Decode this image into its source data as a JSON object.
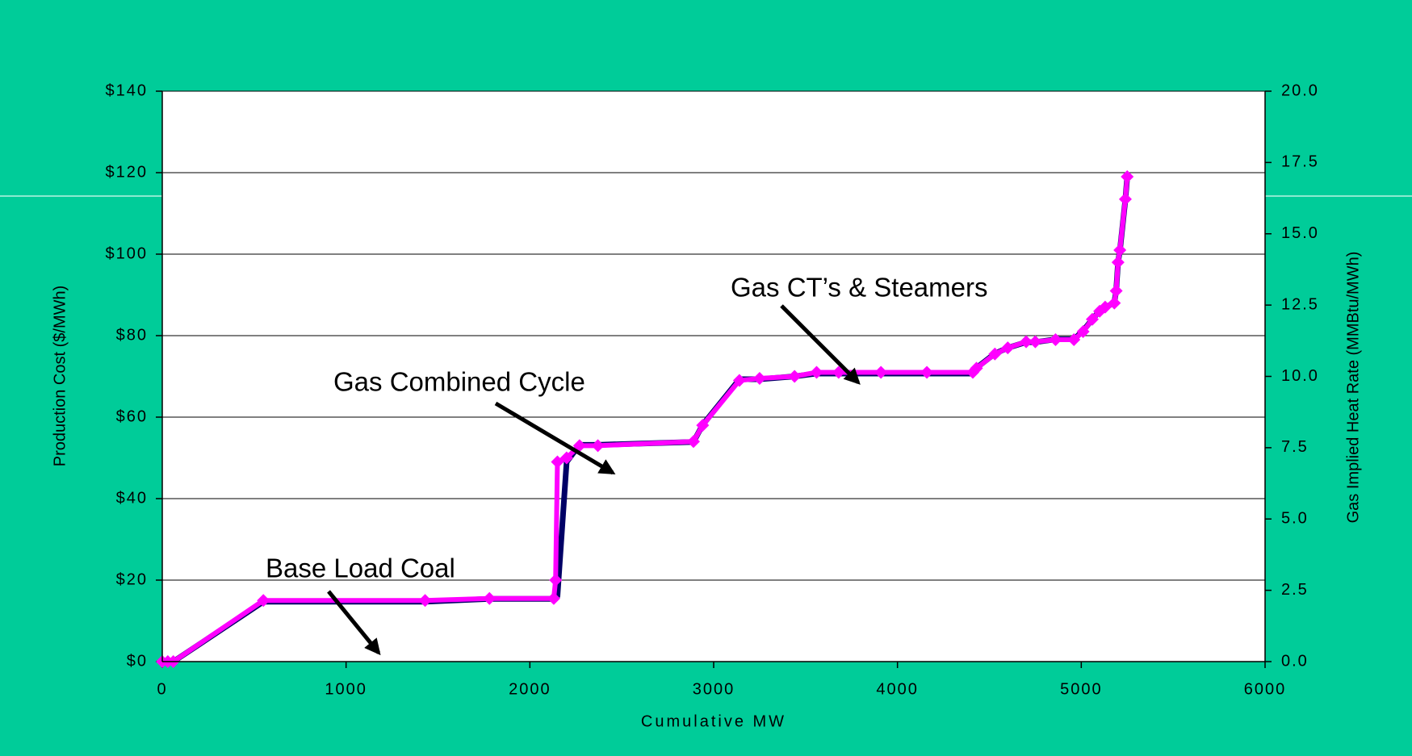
{
  "chart_data": {
    "type": "line",
    "xlabel": "Cumulative MW",
    "ylabel": "Production Cost ($/MWh)",
    "y2label": "Gas Implied Heat Rate (MMBtu/MWh)",
    "x": [
      0,
      30,
      60,
      550,
      1430,
      1780,
      2130,
      2140,
      2150,
      2200,
      2270,
      2370,
      2890,
      2940,
      3140,
      3250,
      3440,
      3560,
      3680,
      3910,
      4160,
      4410,
      4430,
      4530,
      4600,
      4700,
      4750,
      4860,
      4960,
      5010,
      5060,
      5100,
      5130,
      5180,
      5190,
      5200,
      5210,
      5240,
      5250
    ],
    "series": [
      {
        "color": "#ff00ff",
        "values": [
          0,
          0,
          0,
          15,
          15,
          15.5,
          15.5,
          20,
          49,
          50,
          53,
          53,
          54,
          58,
          69,
          69.5,
          70,
          71,
          71,
          71,
          71,
          71,
          72,
          75.5,
          77,
          78.5,
          78.5,
          79,
          79,
          81,
          84,
          86,
          87,
          88,
          91,
          98,
          101,
          113.5,
          119
        ]
      },
      {
        "color": "#000066",
        "axis": "y2",
        "values": [
          0,
          0,
          0,
          2.1,
          2.1,
          2.2,
          2.2,
          2.2,
          2.3,
          7.0,
          7.6,
          7.6,
          7.7,
          8.3,
          9.9,
          9.9,
          10,
          10.1,
          10.1,
          10.1,
          10.1,
          10.1,
          10.3,
          10.8,
          11,
          11.2,
          11.2,
          11.3,
          11.3,
          11.6,
          12,
          12.3,
          12.4,
          12.6,
          13,
          14,
          14.4,
          16.2,
          17
        ]
      }
    ],
    "xlim": [
      0,
      6000
    ],
    "xticks": [
      0,
      1000,
      2000,
      3000,
      4000,
      5000,
      6000
    ],
    "ylim": [
      0,
      140
    ],
    "yticks": [
      {
        "value": 0,
        "label": "$0"
      },
      {
        "value": 20,
        "label": "$20"
      },
      {
        "value": 40,
        "label": "$40"
      },
      {
        "value": 60,
        "label": "$60"
      },
      {
        "value": 80,
        "label": "$80"
      },
      {
        "value": 100,
        "label": "$100"
      },
      {
        "value": 120,
        "label": "$120"
      },
      {
        "value": 140,
        "label": "$140"
      }
    ],
    "y2lim": [
      0,
      20
    ],
    "y2ticks": [
      {
        "value": 0,
        "label": "0.0"
      },
      {
        "value": 2.5,
        "label": "2.5"
      },
      {
        "value": 5,
        "label": "5.0"
      },
      {
        "value": 7.5,
        "label": "7.5"
      },
      {
        "value": 10,
        "label": "10.0"
      },
      {
        "value": 12.5,
        "label": "12.5"
      },
      {
        "value": 15,
        "label": "15.0"
      },
      {
        "value": 17.5,
        "label": "17.5"
      },
      {
        "value": 20,
        "label": "20.0"
      }
    ],
    "grid": true,
    "annotations": [
      "Base Load Coal",
      "Gas Combined Cycle",
      "Gas CT’s & Steamers"
    ]
  }
}
